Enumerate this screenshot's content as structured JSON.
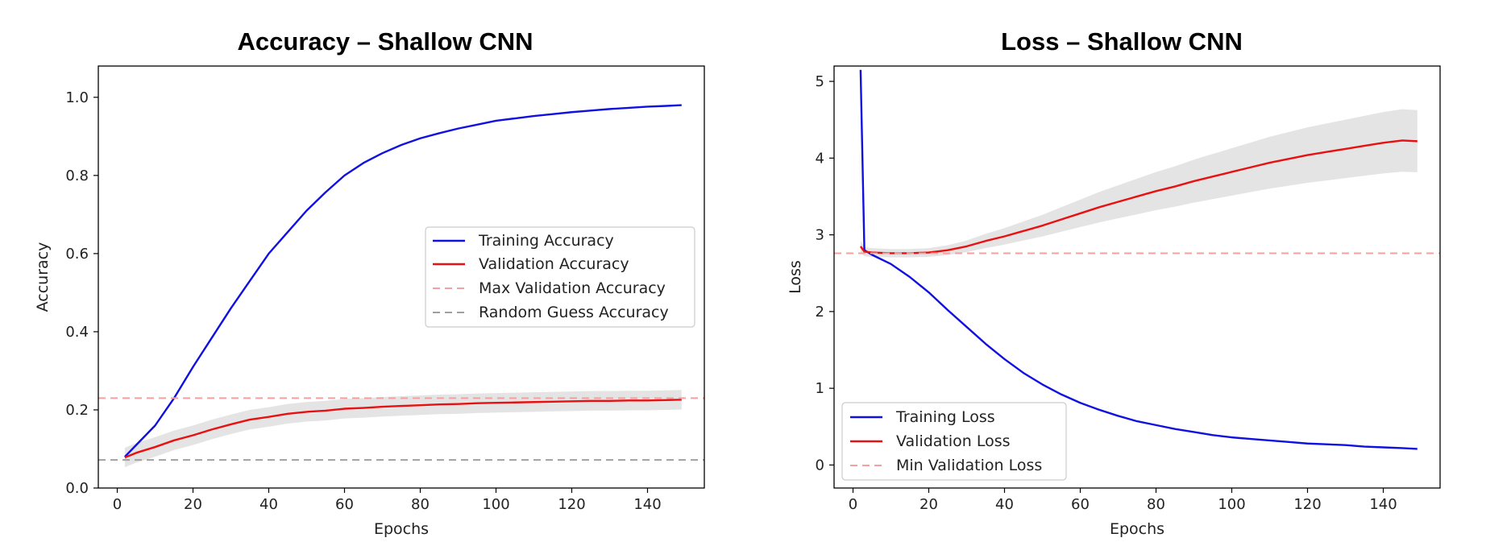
{
  "chart_data": [
    {
      "type": "line",
      "title": "Accuracy – Shallow CNN",
      "xlabel": "Epochs",
      "ylabel": "Accuracy",
      "xlim": [
        -5,
        155
      ],
      "ylim": [
        0,
        1.08
      ],
      "xticks": [
        0,
        20,
        40,
        60,
        80,
        100,
        120,
        140
      ],
      "xtick_labels": [
        "0",
        "20",
        "40",
        "60",
        "80",
        "100",
        "120",
        "140"
      ],
      "yticks": [
        0,
        0.2,
        0.4,
        0.6,
        0.8,
        1.0
      ],
      "ytick_labels": [
        "0.0",
        "0.2",
        "0.4",
        "0.6",
        "0.8",
        "1.0"
      ],
      "legend_position": "center-right",
      "colors": {
        "training": "#1010e0",
        "validation": "#e81010",
        "max_line": "#f5a0a0",
        "random_line": "#a0a0a0",
        "band": "#d9d9d9"
      },
      "series": [
        {
          "name": "Training Accuracy",
          "style": "solid",
          "x": [
            2,
            5,
            10,
            15,
            20,
            25,
            30,
            35,
            40,
            45,
            50,
            55,
            60,
            65,
            70,
            75,
            80,
            85,
            90,
            95,
            100,
            105,
            110,
            115,
            120,
            125,
            130,
            135,
            140,
            145,
            149
          ],
          "values": [
            0.08,
            0.11,
            0.16,
            0.23,
            0.31,
            0.385,
            0.46,
            0.53,
            0.6,
            0.655,
            0.71,
            0.757,
            0.8,
            0.832,
            0.857,
            0.878,
            0.895,
            0.908,
            0.92,
            0.93,
            0.94,
            0.946,
            0.952,
            0.957,
            0.962,
            0.966,
            0.97,
            0.973,
            0.976,
            0.978,
            0.98
          ]
        },
        {
          "name": "Validation Accuracy",
          "style": "solid",
          "x": [
            2,
            5,
            10,
            15,
            20,
            25,
            30,
            35,
            40,
            45,
            50,
            55,
            60,
            65,
            70,
            75,
            80,
            85,
            90,
            95,
            100,
            105,
            110,
            115,
            120,
            125,
            130,
            135,
            140,
            145,
            149
          ],
          "values": [
            0.078,
            0.09,
            0.105,
            0.122,
            0.135,
            0.15,
            0.163,
            0.175,
            0.182,
            0.19,
            0.195,
            0.198,
            0.203,
            0.205,
            0.208,
            0.21,
            0.212,
            0.214,
            0.215,
            0.217,
            0.218,
            0.219,
            0.22,
            0.221,
            0.222,
            0.223,
            0.223,
            0.224,
            0.224,
            0.225,
            0.226
          ],
          "band": [
            0.025,
            0.025
          ]
        },
        {
          "name": "Max Validation Accuracy",
          "style": "dashed",
          "y": 0.23
        },
        {
          "name": "Random Guess Accuracy",
          "style": "dashed",
          "y": 0.072
        }
      ]
    },
    {
      "type": "line",
      "title": "Loss – Shallow CNN",
      "xlabel": "Epochs",
      "ylabel": "Loss",
      "xlim": [
        -5,
        155
      ],
      "ylim": [
        -0.3,
        5.2
      ],
      "xticks": [
        0,
        20,
        40,
        60,
        80,
        100,
        120,
        140
      ],
      "xtick_labels": [
        "0",
        "20",
        "40",
        "60",
        "80",
        "100",
        "120",
        "140"
      ],
      "yticks": [
        0,
        1,
        2,
        3,
        4,
        5
      ],
      "ytick_labels": [
        "0",
        "1",
        "2",
        "3",
        "4",
        "5"
      ],
      "legend_position": "lower-left",
      "colors": {
        "training": "#1010e0",
        "validation": "#e81010",
        "min_line": "#f5a0a0",
        "band": "#d9d9d9"
      },
      "series": [
        {
          "name": "Training Loss",
          "style": "solid",
          "x": [
            2,
            3,
            5,
            10,
            15,
            20,
            25,
            30,
            35,
            40,
            45,
            50,
            55,
            60,
            65,
            70,
            75,
            80,
            85,
            90,
            95,
            100,
            105,
            110,
            115,
            120,
            125,
            130,
            135,
            140,
            145,
            149
          ],
          "values": [
            5.15,
            2.8,
            2.74,
            2.62,
            2.45,
            2.25,
            2.02,
            1.8,
            1.58,
            1.38,
            1.2,
            1.05,
            0.92,
            0.81,
            0.72,
            0.64,
            0.57,
            0.52,
            0.47,
            0.43,
            0.39,
            0.36,
            0.34,
            0.32,
            0.3,
            0.28,
            0.27,
            0.26,
            0.24,
            0.23,
            0.22,
            0.21
          ]
        },
        {
          "name": "Validation Loss",
          "style": "solid",
          "x": [
            2,
            3,
            5,
            10,
            15,
            20,
            25,
            30,
            35,
            40,
            45,
            50,
            55,
            60,
            65,
            70,
            75,
            80,
            85,
            90,
            95,
            100,
            105,
            110,
            115,
            120,
            125,
            130,
            135,
            140,
            145,
            149
          ],
          "values": [
            2.85,
            2.78,
            2.77,
            2.76,
            2.76,
            2.77,
            2.8,
            2.85,
            2.92,
            2.98,
            3.05,
            3.12,
            3.2,
            3.28,
            3.36,
            3.43,
            3.5,
            3.57,
            3.63,
            3.7,
            3.76,
            3.82,
            3.88,
            3.94,
            3.99,
            4.04,
            4.08,
            4.12,
            4.16,
            4.2,
            4.23,
            4.22
          ],
          "band_scale": 0.1
        },
        {
          "name": "Min Validation Loss",
          "style": "dashed",
          "y": 2.76
        }
      ]
    }
  ]
}
